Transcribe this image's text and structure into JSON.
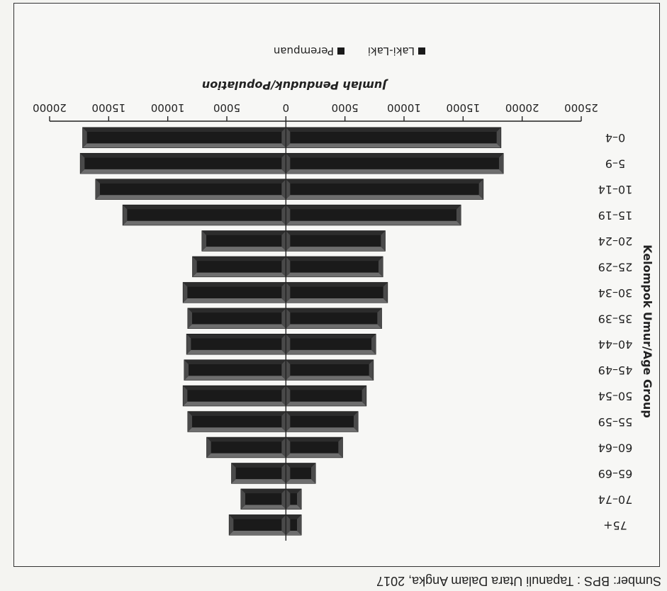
{
  "source_note": "Sumber: BPS : Tapanuli Utara Dalam Angka, 2017",
  "chart_data": {
    "type": "bar",
    "orientation": "horizontal-butterfly",
    "categories": [
      "0–4",
      "5–9",
      "10–14",
      "15–19",
      "20–24",
      "25–29",
      "30–34",
      "35–39",
      "40–44",
      "45–49",
      "50–54",
      "55–59",
      "60–64",
      "65–69",
      "70–74",
      "75+"
    ],
    "series": [
      {
        "name": "Laki-Laki",
        "values": [
          -18200,
          -18400,
          -16700,
          -14800,
          -8400,
          -8200,
          -8600,
          -8100,
          -7600,
          -7400,
          -6800,
          -6100,
          -4800,
          -2500,
          -1300,
          -1300
        ]
      },
      {
        "name": "Perempuan",
        "values": [
          17200,
          17400,
          16100,
          13800,
          7100,
          7900,
          8700,
          8300,
          8400,
          8600,
          8700,
          8300,
          6700,
          4600,
          3800,
          4800
        ]
      }
    ],
    "xlim": [
      -25000,
      20000
    ],
    "xticks": [
      -25000,
      -20000,
      -15000,
      -10000,
      -5000,
      0,
      5000,
      10000,
      15000,
      20000
    ],
    "xtick_labels": [
      "25000",
      "20000",
      "15000",
      "10000",
      "5000",
      "0",
      "5000",
      "10000",
      "15000",
      "20000"
    ],
    "xlabel": "Jumlah Penduduk/Population",
    "ylabel": "Kelompok Umur/Age Group",
    "legend": {
      "position": "bottom",
      "items": [
        "Laki-Laki",
        "Perempuan"
      ]
    },
    "colors": {
      "bar": "#1a1a1a",
      "bevel": "#6e6e6e",
      "axis": "#222222"
    },
    "grid": false
  }
}
